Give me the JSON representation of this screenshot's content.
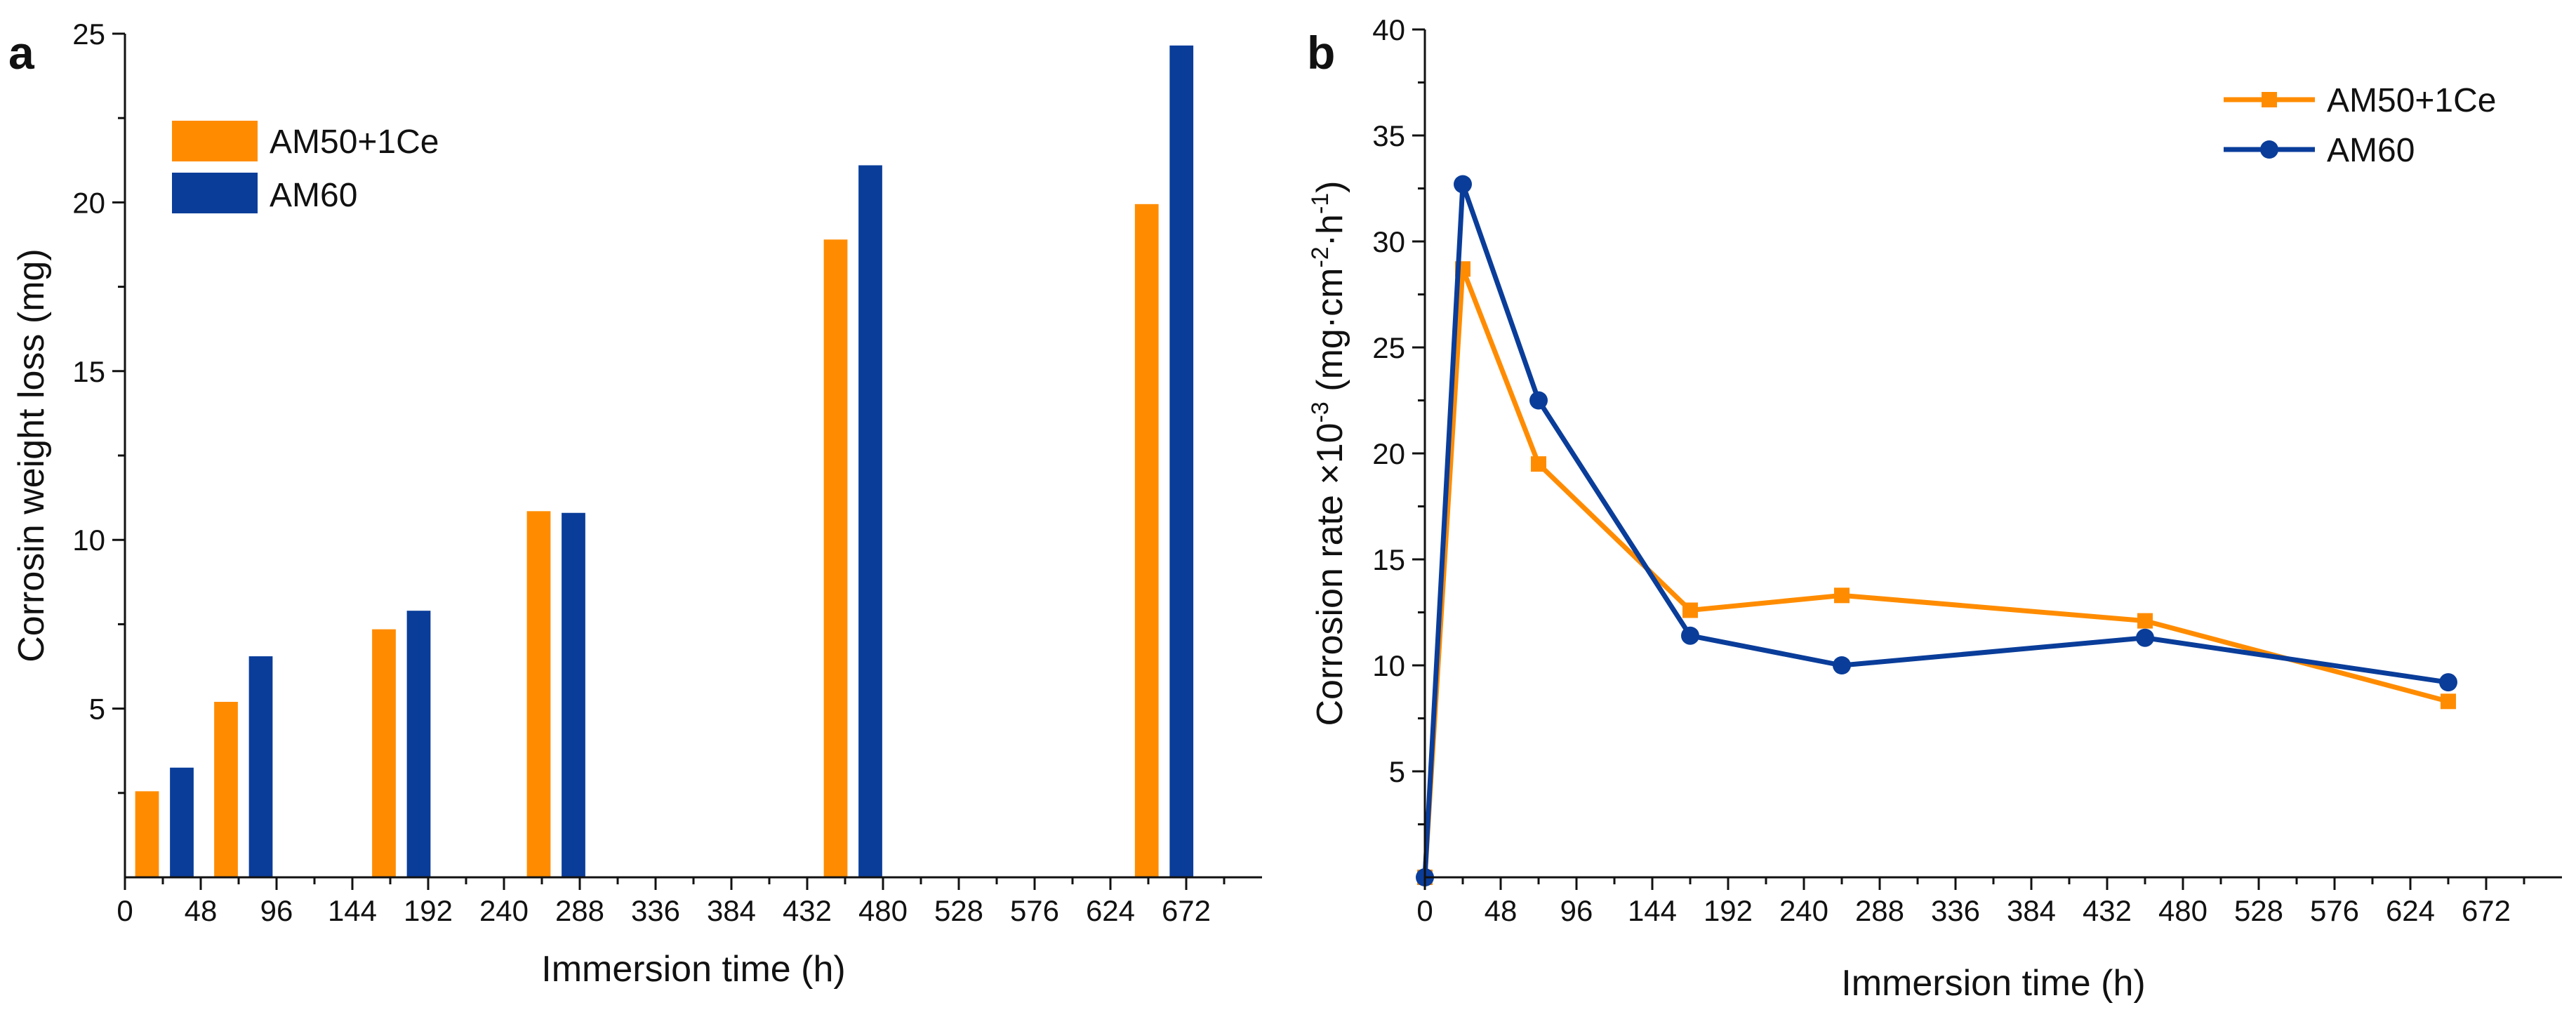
{
  "colors": {
    "orange": "#FF8C00",
    "blue": "#0A3D9A",
    "axis": "#111111"
  },
  "chart_data": [
    {
      "panel": "a",
      "type": "bar",
      "xlabel": "Immersion time (h)",
      "ylabel": "Corrosin weight loss (mg)",
      "xlim": [
        0,
        720
      ],
      "ylim": [
        0,
        25
      ],
      "x_ticks": [
        0,
        48,
        96,
        144,
        192,
        240,
        288,
        336,
        384,
        432,
        480,
        528,
        576,
        624,
        672
      ],
      "y_ticks": [
        5,
        10,
        15,
        20,
        25
      ],
      "grid": false,
      "legend_position": "top-left",
      "bar_width_h": 15,
      "series": [
        {
          "name": "AM50+1Ce",
          "color": "#FF8C00",
          "points": [
            {
              "x": 14,
              "y": 2.55
            },
            {
              "x": 64,
              "y": 5.2
            },
            {
              "x": 164,
              "y": 7.35
            },
            {
              "x": 262,
              "y": 10.85
            },
            {
              "x": 450,
              "y": 18.9
            },
            {
              "x": 647,
              "y": 19.95
            }
          ]
        },
        {
          "name": "AM60",
          "color": "#0A3D9A",
          "points": [
            {
              "x": 36,
              "y": 3.25
            },
            {
              "x": 86,
              "y": 6.55
            },
            {
              "x": 186,
              "y": 7.9
            },
            {
              "x": 284,
              "y": 10.8
            },
            {
              "x": 472,
              "y": 21.1
            },
            {
              "x": 669,
              "y": 24.65
            }
          ]
        }
      ]
    },
    {
      "panel": "b",
      "type": "line",
      "xlabel": "Immersion time (h)",
      "ylabel_main": "Corrosion rate ×10",
      "ylabel_exp": "-3",
      "ylabel_unit_open": " (mg·cm",
      "ylabel_unit_exp1": "-2",
      "ylabel_unit_mid": "·h",
      "ylabel_unit_exp2": "-1",
      "ylabel_unit_close": ")",
      "xlim": [
        0,
        720
      ],
      "ylim": [
        0,
        40
      ],
      "x_ticks": [
        0,
        48,
        96,
        144,
        192,
        240,
        288,
        336,
        384,
        432,
        480,
        528,
        576,
        624,
        672
      ],
      "y_ticks": [
        5,
        10,
        15,
        20,
        25,
        30,
        35,
        40
      ],
      "grid": false,
      "legend_position": "top-right",
      "series": [
        {
          "name": "AM50+1Ce",
          "color": "#FF8C00",
          "marker": "square",
          "points": [
            {
              "x": 0,
              "y": 0
            },
            {
              "x": 24,
              "y": 28.7
            },
            {
              "x": 72,
              "y": 19.5
            },
            {
              "x": 168,
              "y": 12.6
            },
            {
              "x": 264,
              "y": 13.3
            },
            {
              "x": 456,
              "y": 12.1
            },
            {
              "x": 648,
              "y": 8.3
            }
          ]
        },
        {
          "name": "AM60",
          "color": "#0A3D9A",
          "marker": "circle",
          "points": [
            {
              "x": 0,
              "y": 0
            },
            {
              "x": 24,
              "y": 32.7
            },
            {
              "x": 72,
              "y": 22.5
            },
            {
              "x": 168,
              "y": 11.4
            },
            {
              "x": 264,
              "y": 10.0
            },
            {
              "x": 456,
              "y": 11.3
            },
            {
              "x": 648,
              "y": 9.2
            }
          ]
        }
      ]
    }
  ]
}
